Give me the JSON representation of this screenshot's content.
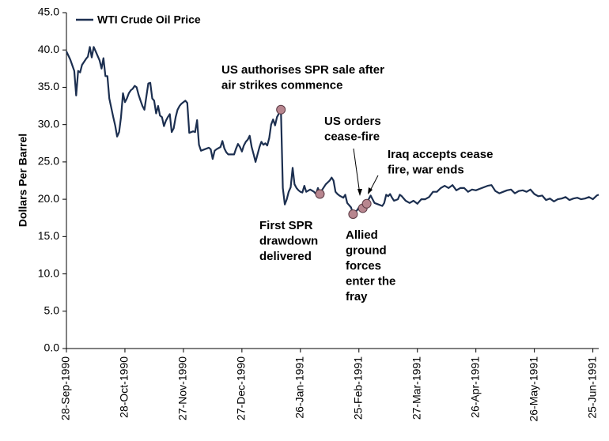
{
  "chart_data": {
    "type": "line",
    "y_label": "Dollars Per Barrel",
    "legend": "top-left",
    "grid": false,
    "xlim": [
      "28-Sep-1990",
      "28-Jun-1991"
    ],
    "xticks": [
      "28-Sep-1990",
      "28-Oct-1990",
      "27-Nov-1990",
      "27-Dec-1990",
      "26-Jan-1991",
      "25-Feb-1991",
      "27-Mar-1991",
      "26-Apr-1991",
      "26-May-1991",
      "25-Jun-1991"
    ],
    "ylim": [
      0,
      45
    ],
    "yticks": [
      {
        "value": 0,
        "label": "0.0"
      },
      {
        "value": 5,
        "label": "5.0"
      },
      {
        "value": 10,
        "label": "10.0"
      },
      {
        "value": 15,
        "label": "15.0"
      },
      {
        "value": 20,
        "label": "20.0"
      },
      {
        "value": 25,
        "label": "25.0"
      },
      {
        "value": 30,
        "label": "30.0"
      },
      {
        "value": 35,
        "label": "35.0"
      },
      {
        "value": 40,
        "label": "40.0"
      },
      {
        "value": 45,
        "label": "45.0"
      }
    ],
    "x": [
      "28-Sep-1990",
      "30-Sep-1990",
      "2-Oct-1990",
      "3-Oct-1990",
      "4-Oct-1990",
      "5-Oct-1990",
      "6-Oct-1990",
      "8-Oct-1990",
      "9-Oct-1990",
      "10-Oct-1990",
      "11-Oct-1990",
      "12-Oct-1990",
      "13-Oct-1990",
      "15-Oct-1990",
      "16-Oct-1990",
      "17-Oct-1990",
      "18-Oct-1990",
      "19-Oct-1990",
      "20-Oct-1990",
      "22-Oct-1990",
      "23-Oct-1990",
      "24-Oct-1990",
      "25-Oct-1990",
      "26-Oct-1990",
      "27-Oct-1990",
      "28-Oct-1990",
      "29-Oct-1990",
      "30-Oct-1990",
      "31-Oct-1990",
      "1-Nov-1990",
      "2-Nov-1990",
      "3-Nov-1990",
      "4-Nov-1990",
      "5-Nov-1990",
      "6-Nov-1990",
      "7-Nov-1990",
      "8-Nov-1990",
      "9-Nov-1990",
      "10-Nov-1990",
      "11-Nov-1990",
      "12-Nov-1990",
      "13-Nov-1990",
      "14-Nov-1990",
      "15-Nov-1990",
      "16-Nov-1990",
      "17-Nov-1990",
      "18-Nov-1990",
      "19-Nov-1990",
      "20-Nov-1990",
      "21-Nov-1990",
      "22-Nov-1990",
      "23-Nov-1990",
      "24-Nov-1990",
      "25-Nov-1990",
      "26-Nov-1990",
      "27-Nov-1990",
      "28-Nov-1990",
      "29-Nov-1990",
      "30-Nov-1990",
      "2-Dec-1990",
      "3-Dec-1990",
      "4-Dec-1990",
      "5-Dec-1990",
      "6-Dec-1990",
      "8-Dec-1990",
      "10-Dec-1990",
      "11-Dec-1990",
      "12-Dec-1990",
      "13-Dec-1990",
      "14-Dec-1990",
      "16-Dec-1990",
      "17-Dec-1990",
      "18-Dec-1990",
      "19-Dec-1990",
      "20-Dec-1990",
      "22-Dec-1990",
      "23-Dec-1990",
      "24-Dec-1990",
      "25-Dec-1990",
      "26-Dec-1990",
      "27-Dec-1990",
      "28-Dec-1990",
      "29-Dec-1990",
      "30-Dec-1990",
      "31-Dec-1990",
      "1-Jan-1991",
      "2-Jan-1991",
      "3-Jan-1991",
      "4-Jan-1991",
      "5-Jan-1991",
      "6-Jan-1991",
      "7-Jan-1991",
      "8-Jan-1991",
      "9-Jan-1991",
      "10-Jan-1991",
      "11-Jan-1991",
      "12-Jan-1991",
      "13-Jan-1991",
      "14-Jan-1991",
      "16-Jan-1991",
      "17-Jan-1991",
      "18-Jan-1991",
      "19-Jan-1991",
      "20-Jan-1991",
      "21-Jan-1991",
      "22-Jan-1991",
      "23-Jan-1991",
      "24-Jan-1991",
      "25-Jan-1991",
      "26-Jan-1991",
      "27-Jan-1991",
      "28-Jan-1991",
      "29-Jan-1991",
      "31-Jan-1991",
      "2-Feb-1991",
      "3-Feb-1991",
      "4-Feb-1991",
      "5-Feb-1991",
      "6-Feb-1991",
      "8-Feb-1991",
      "10-Feb-1991",
      "11-Feb-1991",
      "12-Feb-1991",
      "13-Feb-1991",
      "14-Feb-1991",
      "15-Feb-1991",
      "17-Feb-1991",
      "18-Feb-1991",
      "19-Feb-1991",
      "21-Feb-1991",
      "22-Feb-1991",
      "23-Feb-1991",
      "24-Feb-1991",
      "25-Feb-1991",
      "27-Feb-1991",
      "28-Feb-1991",
      "1-Mar-1991",
      "2-Mar-1991",
      "3-Mar-1991",
      "5-Mar-1991",
      "7-Mar-1991",
      "9-Mar-1991",
      "10-Mar-1991",
      "11-Mar-1991",
      "12-Mar-1991",
      "13-Mar-1991",
      "14-Mar-1991",
      "15-Mar-1991",
      "17-Mar-1991",
      "18-Mar-1991",
      "19-Mar-1991",
      "21-Mar-1991",
      "23-Mar-1991",
      "25-Mar-1991",
      "27-Mar-1991",
      "29-Mar-1991",
      "31-Mar-1991",
      "2-Apr-1991",
      "4-Apr-1991",
      "6-Apr-1991",
      "8-Apr-1991",
      "10-Apr-1991",
      "12-Apr-1991",
      "14-Apr-1991",
      "16-Apr-1991",
      "18-Apr-1991",
      "20-Apr-1991",
      "22-Apr-1991",
      "24-Apr-1991",
      "26-Apr-1991",
      "28-Apr-1991",
      "30-Apr-1991",
      "2-May-1991",
      "4-May-1991",
      "6-May-1991",
      "8-May-1991",
      "10-May-1991",
      "12-May-1991",
      "14-May-1991",
      "16-May-1991",
      "18-May-1991",
      "20-May-1991",
      "22-May-1991",
      "24-May-1991",
      "26-May-1991",
      "28-May-1991",
      "30-May-1991",
      "1-Jun-1991",
      "3-Jun-1991",
      "5-Jun-1991",
      "7-Jun-1991",
      "9-Jun-1991",
      "11-Jun-1991",
      "13-Jun-1991",
      "15-Jun-1991",
      "17-Jun-1991",
      "19-Jun-1991",
      "21-Jun-1991",
      "23-Jun-1991",
      "25-Jun-1991",
      "27-Jun-1991",
      "28-Jun-1991"
    ],
    "series": [
      {
        "name": "WTI Crude Oil Price",
        "color": "#1c2f50",
        "values": [
          39.8,
          38.7,
          37.2,
          33.9,
          37.2,
          37.0,
          38.0,
          38.8,
          39.1,
          40.4,
          39.0,
          40.4,
          39.8,
          38.6,
          37.5,
          38.9,
          36.5,
          36.5,
          33.5,
          31.0,
          29.9,
          28.4,
          29.0,
          31.0,
          34.2,
          33.0,
          33.5,
          34.2,
          34.6,
          34.8,
          35.2,
          35.0,
          34.0,
          33.2,
          32.5,
          32.0,
          33.8,
          35.5,
          35.6,
          33.5,
          33.2,
          31.5,
          32.5,
          31.2,
          31.0,
          29.8,
          30.5,
          31.0,
          31.4,
          29.0,
          29.5,
          31.0,
          32.0,
          32.5,
          32.8,
          33.0,
          33.2,
          32.9,
          28.9,
          29.1,
          29.0,
          30.6,
          27.3,
          26.5,
          26.7,
          26.9,
          26.7,
          25.4,
          26.5,
          26.7,
          27.0,
          27.8,
          26.8,
          26.3,
          26.0,
          26.0,
          26.0,
          26.8,
          27.4,
          27.0,
          26.4,
          27.2,
          27.7,
          28.0,
          28.5,
          27.0,
          26.0,
          25.0,
          26.0,
          27.0,
          27.7,
          27.3,
          27.5,
          27.2,
          28.2,
          30.0,
          30.7,
          29.9,
          31.0,
          32.0,
          21.5,
          19.3,
          20.0,
          21.0,
          21.6,
          24.2,
          22.0,
          21.5,
          21.2,
          21.0,
          20.9,
          21.8,
          21.0,
          21.3,
          21.0,
          20.7,
          21.5,
          20.7,
          21.2,
          22.0,
          22.5,
          22.9,
          22.5,
          21.0,
          20.7,
          20.5,
          20.2,
          20.6,
          19.5,
          18.9,
          18.0,
          18.3,
          18.5,
          18.9,
          18.8,
          19.5,
          19.4,
          20.0,
          20.5,
          19.5,
          19.3,
          19.1,
          19.5,
          20.6,
          20.4,
          20.7,
          20.2,
          19.8,
          20.0,
          20.6,
          20.4,
          19.8,
          19.5,
          19.8,
          19.4,
          20.0,
          20.0,
          20.3,
          21.0,
          21.0,
          21.5,
          21.8,
          21.5,
          21.9,
          21.2,
          21.5,
          21.5,
          21.0,
          21.3,
          21.2,
          21.4,
          21.6,
          21.8,
          21.9,
          21.1,
          20.8,
          21.0,
          21.2,
          21.3,
          20.8,
          21.1,
          21.2,
          21.0,
          21.3,
          20.7,
          20.4,
          20.5,
          19.9,
          20.1,
          19.7,
          20.0,
          20.1,
          20.3,
          19.9,
          20.1,
          20.2,
          20.0,
          20.1,
          20.3,
          20.0,
          20.5,
          20.6
        ]
      }
    ],
    "marker_color": "#b8868f",
    "events": [
      {
        "x": "16-Jan-1991",
        "value": 32.0,
        "label": [
          "US authorises SPR sale after",
          "air strikes commence"
        ]
      },
      {
        "x": "5-Feb-1991",
        "value": 20.7,
        "label": [
          "First SPR",
          "drawdown",
          "delivered"
        ]
      },
      {
        "x": "22-Feb-1991",
        "value": 18.0,
        "label": [
          "Allied",
          "ground",
          "forces",
          "enter the",
          "fray"
        ]
      },
      {
        "x": "27-Feb-1991",
        "value": 18.8,
        "label": [
          "US orders",
          "cease-fire"
        ]
      },
      {
        "x": "1-Mar-1991",
        "value": 19.4,
        "label": [
          "Iraq accepts cease",
          "fire, war ends"
        ]
      }
    ]
  }
}
